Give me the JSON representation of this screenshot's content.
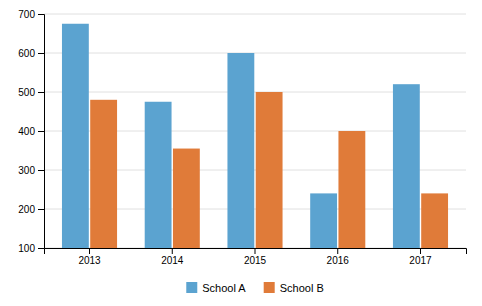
{
  "chart_data": {
    "type": "bar",
    "categories": [
      "2013",
      "2014",
      "2015",
      "2016",
      "2017"
    ],
    "series": [
      {
        "name": "School A",
        "color": "#5BA3D0",
        "values": [
          675,
          475,
          600,
          240,
          520
        ]
      },
      {
        "name": "School B",
        "color": "#E07B39",
        "values": [
          480,
          355,
          500,
          400,
          240
        ]
      }
    ],
    "ylim": [
      100,
      700
    ],
    "yticks": [
      100,
      200,
      300,
      400,
      500,
      600,
      700
    ],
    "grid": true,
    "legend": "bottom"
  }
}
